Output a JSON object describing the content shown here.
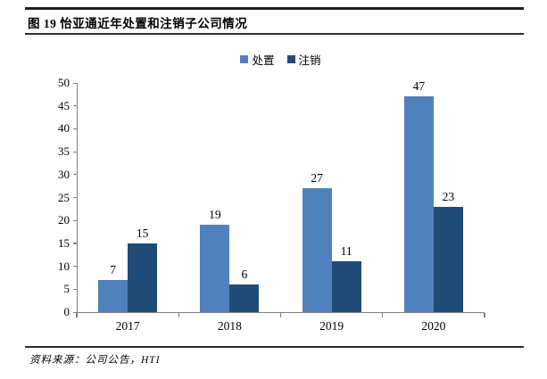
{
  "figure": {
    "title": "图 19 怡亚通近年处置和注销子公司情况",
    "source": "资料来源：公司公告，HTI"
  },
  "colors": {
    "series1": "#4F81BD",
    "series2": "#1E4C76",
    "axis": "#808080",
    "rule": "#2e2e2e",
    "text": "#000000"
  },
  "chart_data": {
    "type": "bar",
    "title": "图 19 怡亚通近年处置和注销子公司情况",
    "categories": [
      "2017",
      "2018",
      "2019",
      "2020"
    ],
    "series": [
      {
        "name": "处置",
        "color": "#4F81BD",
        "values": [
          7,
          19,
          27,
          47
        ]
      },
      {
        "name": "注销",
        "color": "#1E4C76",
        "values": [
          15,
          6,
          11,
          23
        ]
      }
    ],
    "xlabel": "",
    "ylabel": "",
    "ylim": [
      0,
      50
    ],
    "ytick_step": 5,
    "grid": false,
    "legend_position": "top-center",
    "value_labels": true
  }
}
